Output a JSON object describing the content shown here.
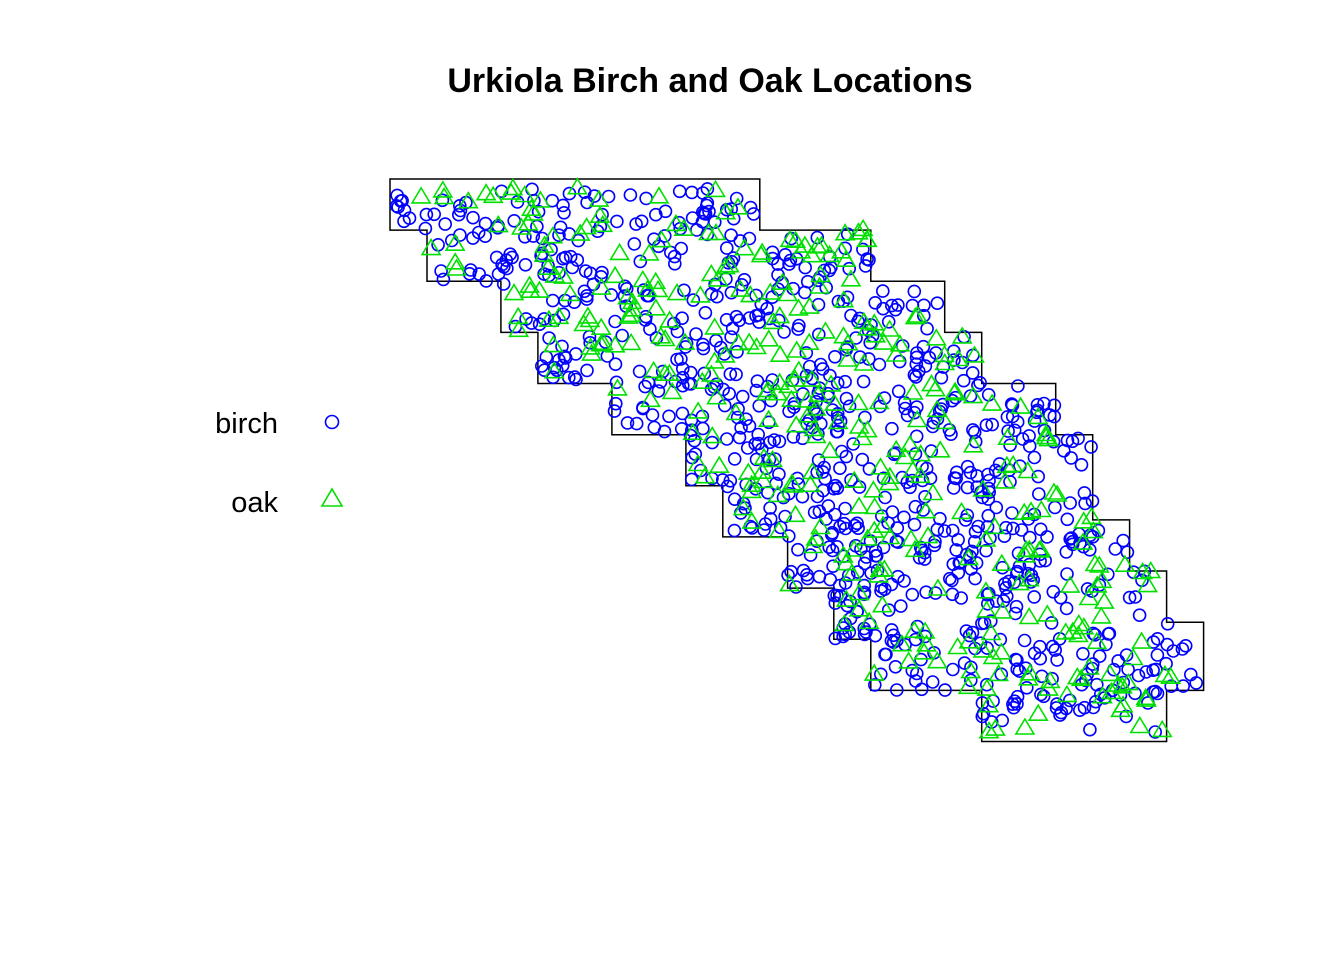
{
  "chart_data": {
    "type": "scatter",
    "title": "Urkiola Birch and Oak Locations",
    "xlabel": "",
    "ylabel": "",
    "grid": false,
    "axes_shown": false,
    "legend_position": "left",
    "window_boundary": [
      [
        0,
        0
      ],
      [
        40,
        0
      ],
      [
        40,
        3
      ],
      [
        52,
        3
      ],
      [
        52,
        6
      ],
      [
        60,
        6
      ],
      [
        60,
        9
      ],
      [
        64,
        9
      ],
      [
        64,
        12
      ],
      [
        72,
        12
      ],
      [
        72,
        15
      ],
      [
        76,
        15
      ],
      [
        76,
        20
      ],
      [
        80,
        20
      ],
      [
        80,
        23
      ],
      [
        84,
        23
      ],
      [
        84,
        26
      ],
      [
        88,
        26
      ],
      [
        88,
        30
      ],
      [
        84,
        30
      ],
      [
        84,
        33
      ],
      [
        64,
        33
      ],
      [
        64,
        30
      ],
      [
        52,
        30
      ],
      [
        52,
        27
      ],
      [
        48,
        27
      ],
      [
        48,
        24
      ],
      [
        43,
        24
      ],
      [
        43,
        21
      ],
      [
        36,
        21
      ],
      [
        36,
        18
      ],
      [
        32,
        18
      ],
      [
        32,
        15
      ],
      [
        24,
        15
      ],
      [
        24,
        12
      ],
      [
        16,
        12
      ],
      [
        16,
        9
      ],
      [
        12,
        9
      ],
      [
        12,
        6
      ],
      [
        4,
        6
      ],
      [
        4,
        3
      ],
      [
        0,
        3
      ],
      [
        0,
        0
      ]
    ],
    "xlim": [
      0,
      88
    ],
    "ylim": [
      0,
      33
    ],
    "series": [
      {
        "name": "birch",
        "marker": "circle",
        "color": "#0000FF",
        "count": 886,
        "seed": 7
      },
      {
        "name": "oak",
        "marker": "triangle",
        "color": "#00E000",
        "count": 359,
        "seed": 19
      }
    ]
  }
}
